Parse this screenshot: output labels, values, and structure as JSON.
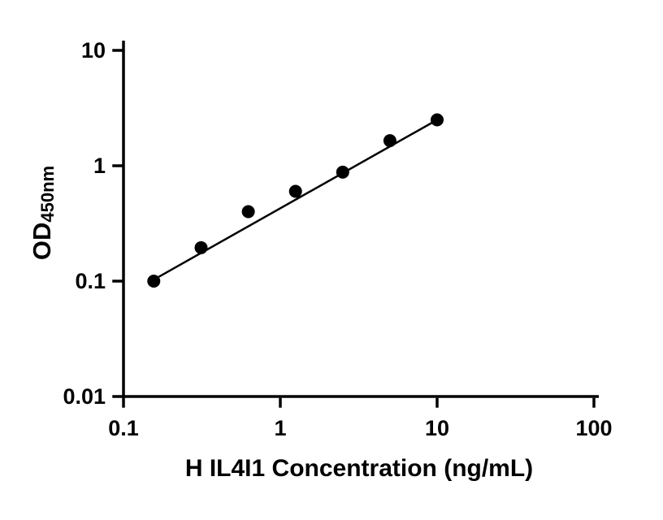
{
  "background_color": "#ffffff",
  "chart_data": {
    "type": "scatter",
    "title": "",
    "xlabel": "H IL4I1 Concentration (ng/mL)",
    "ylabel_main": "OD",
    "ylabel_sub": "450nm",
    "x_scale": "log",
    "y_scale": "log",
    "xlim": [
      0.1,
      100
    ],
    "ylim": [
      0.01,
      10
    ],
    "grid": false,
    "legend": "none",
    "axis_color": "#000000",
    "marker_color": "#000000",
    "line_color": "#000000",
    "x_ticks": [
      {
        "value": 0.1,
        "label": "0.1"
      },
      {
        "value": 1,
        "label": "1"
      },
      {
        "value": 10,
        "label": "10"
      },
      {
        "value": 100,
        "label": "100"
      }
    ],
    "y_ticks": [
      {
        "value": 10,
        "label": "10"
      },
      {
        "value": 1,
        "label": "1"
      },
      {
        "value": 0.1,
        "label": "0.1"
      },
      {
        "value": 0.01,
        "label": "0.01"
      }
    ],
    "points": [
      {
        "x": 0.156,
        "y": 0.1
      },
      {
        "x": 0.3125,
        "y": 0.195
      },
      {
        "x": 0.625,
        "y": 0.4
      },
      {
        "x": 1.25,
        "y": 0.6
      },
      {
        "x": 2.5,
        "y": 0.88
      },
      {
        "x": 5,
        "y": 1.65
      },
      {
        "x": 10,
        "y": 2.5
      }
    ],
    "fit_line": {
      "x1": 0.156,
      "y1": 0.103,
      "x2": 10,
      "y2": 2.5
    }
  }
}
